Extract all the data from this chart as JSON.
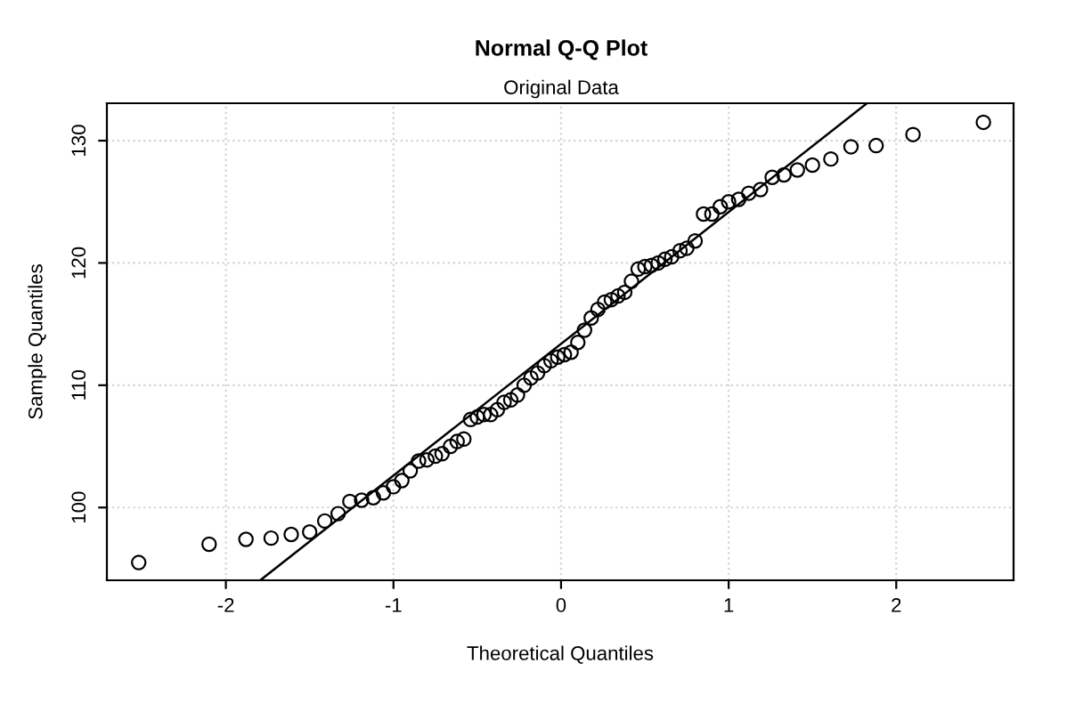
{
  "chart_data": {
    "type": "scatter",
    "title": "Normal Q-Q Plot",
    "subtitle": "Original Data",
    "xlabel": "Theoretical Quantiles",
    "ylabel": "Sample Quantiles",
    "xlim": [
      -2.71,
      2.7
    ],
    "ylim": [
      94.05,
      133.06
    ],
    "xticks": [
      -2,
      -1,
      0,
      1,
      2
    ],
    "yticks": [
      100,
      110,
      120,
      130
    ],
    "grid": true,
    "series": [
      {
        "color": "#000000",
        "marker": "circle",
        "x": [
          -2.52,
          -2.1,
          -1.88,
          -1.73,
          -1.61,
          -1.5,
          -1.41,
          -1.33,
          -1.26,
          -1.19,
          -1.12,
          -1.06,
          -1.0,
          -0.95,
          -0.9,
          -0.85,
          -0.8,
          -0.75,
          -0.71,
          -0.66,
          -0.62,
          -0.58,
          -0.54,
          -0.5,
          -0.46,
          -0.42,
          -0.38,
          -0.34,
          -0.3,
          -0.26,
          -0.22,
          -0.18,
          -0.14,
          -0.1,
          -0.06,
          -0.02,
          0.02,
          0.06,
          0.1,
          0.14,
          0.18,
          0.22,
          0.26,
          0.3,
          0.34,
          0.38,
          0.42,
          0.46,
          0.5,
          0.54,
          0.58,
          0.62,
          0.66,
          0.71,
          0.75,
          0.8,
          0.85,
          0.9,
          0.95,
          1.0,
          1.06,
          1.12,
          1.19,
          1.26,
          1.33,
          1.41,
          1.5,
          1.61,
          1.73,
          1.88,
          2.1,
          2.52
        ],
        "values": [
          95.5,
          97.0,
          97.4,
          97.5,
          97.8,
          98.0,
          98.9,
          99.5,
          100.5,
          100.6,
          100.8,
          101.2,
          101.7,
          102.2,
          103.0,
          103.8,
          103.9,
          104.2,
          104.4,
          105.0,
          105.4,
          105.6,
          107.2,
          107.4,
          107.6,
          107.6,
          108.0,
          108.6,
          108.8,
          109.2,
          110.0,
          110.6,
          111.0,
          111.6,
          112.0,
          112.3,
          112.5,
          112.7,
          113.5,
          114.5,
          115.5,
          116.2,
          116.8,
          117.0,
          117.3,
          117.6,
          118.5,
          119.5,
          119.7,
          119.8,
          120.0,
          120.3,
          120.5,
          121.0,
          121.2,
          121.8,
          124.0,
          124.0,
          124.6,
          125.0,
          125.2,
          125.7,
          126.0,
          127.0,
          127.2,
          127.6,
          128.0,
          128.5,
          129.5,
          129.6,
          130.5,
          131.5
        ]
      },
      {
        "type": "line",
        "color": "#000000",
        "line_style": "solid",
        "marker": "none",
        "x": [
          -1.79,
          1.82
        ],
        "values": [
          94.1,
          133.0
        ]
      }
    ]
  }
}
